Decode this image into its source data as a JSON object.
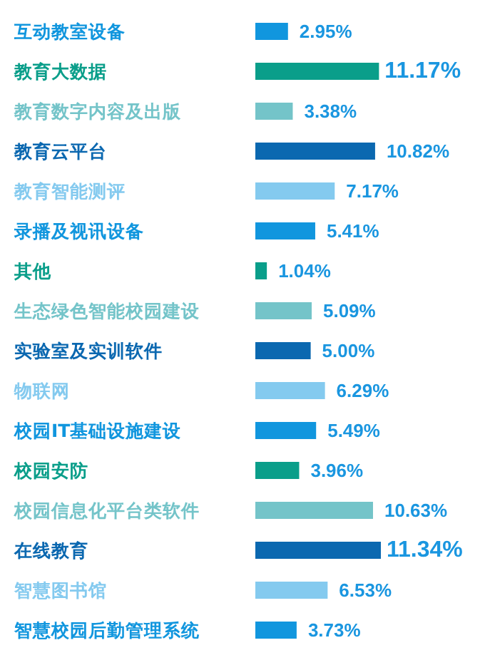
{
  "chart_data": {
    "type": "bar",
    "orientation": "horizontal",
    "categories": [
      "互动教室设备",
      "教育大数据",
      "教育数字内容及出版",
      "教育云平台",
      "教育智能测评",
      "录播及视讯设备",
      "其他",
      "生态绿色智能校园建设",
      "实验室及实训软件",
      "物联网",
      "校园IT基础设施建设",
      "校园安防",
      "校园信息化平台类软件",
      "在线教育",
      "智慧图书馆",
      "智慧校园后勤管理系统"
    ],
    "values": [
      2.95,
      11.17,
      3.38,
      10.82,
      7.17,
      5.41,
      1.04,
      5.09,
      5.0,
      6.29,
      5.49,
      3.96,
      10.63,
      11.34,
      6.53,
      3.73
    ],
    "value_labels": [
      "2.95%",
      "11.17%",
      "3.38%",
      "10.82%",
      "7.17%",
      "5.41%",
      "1.04%",
      "5.09%",
      "5.00%",
      "6.29%",
      "5.49%",
      "3.96%",
      "10.63%",
      "11.34%",
      "6.53%",
      "3.73%"
    ],
    "colors": [
      "#1196de",
      "#0a9e8a",
      "#74c4c9",
      "#0b68b0",
      "#84caef",
      "#1196de",
      "#0a9e8a",
      "#74c4c9",
      "#0b68b0",
      "#84caef",
      "#1196de",
      "#0a9e8a",
      "#74c4c9",
      "#0b68b0",
      "#84caef",
      "#1196de"
    ]
  }
}
